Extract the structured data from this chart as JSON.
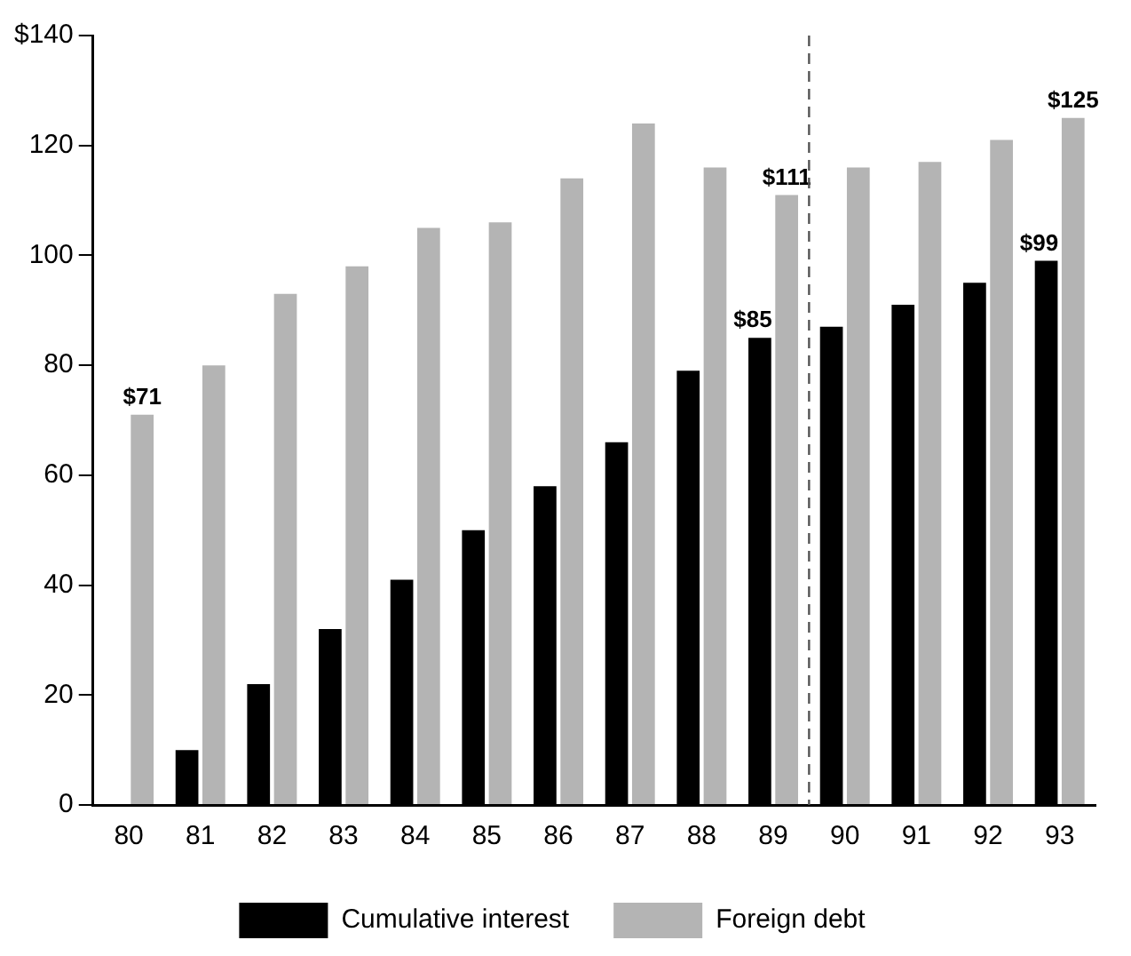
{
  "chart_data": {
    "type": "bar",
    "x": [
      80,
      81,
      82,
      83,
      84,
      85,
      86,
      87,
      88,
      89,
      90,
      91,
      92,
      93
    ],
    "xlim": [
      79.5,
      93.5
    ],
    "xticks": [
      80,
      81,
      82,
      83,
      84,
      85,
      86,
      87,
      88,
      89,
      90,
      91,
      92,
      93
    ],
    "ylim": [
      0,
      140
    ],
    "yticks": [
      0,
      20,
      40,
      60,
      80,
      100,
      120,
      {
        "value": 140,
        "label": "$140"
      }
    ],
    "series": [
      {
        "name": "Cumulative interest",
        "color": "#000000",
        "values": [
          null,
          10,
          22,
          32,
          41,
          50,
          58,
          66,
          79,
          85,
          87,
          91,
          95,
          99
        ],
        "value_labels": [
          null,
          null,
          null,
          null,
          null,
          null,
          null,
          null,
          null,
          "$85",
          null,
          null,
          null,
          "$99"
        ]
      },
      {
        "name": "Foreign debt",
        "color": "#b4b4b4",
        "values": [
          71,
          80,
          93,
          98,
          105,
          106,
          114,
          124,
          116,
          111,
          116,
          117,
          121,
          125
        ],
        "value_labels": [
          "$71",
          null,
          null,
          null,
          null,
          null,
          null,
          null,
          null,
          "$111",
          null,
          null,
          null,
          "$125"
        ]
      }
    ],
    "ref_lines": [
      {
        "axis": "x",
        "value": 89.5,
        "line_style": "dashed",
        "color": "#555555"
      }
    ],
    "legend": "bottom",
    "grid": false
  }
}
